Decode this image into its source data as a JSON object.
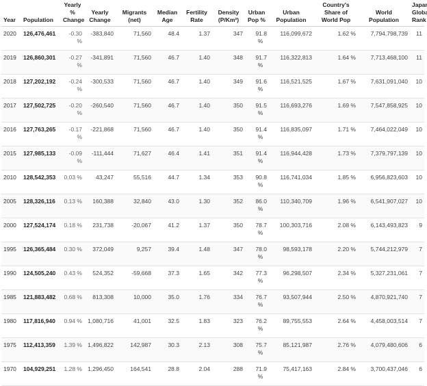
{
  "headers": {
    "year": "Year",
    "population": "Population",
    "yearly_pct_change": "Yearly % Change",
    "yearly_change": "Yearly Change",
    "migrants": "Migrants (net)",
    "median_age": "Median Age",
    "fertility": "Fertility Rate",
    "density": "Density (P/Km²)",
    "urban_pop_pct": "Urban Pop %",
    "urban_population": "Urban Population",
    "share_world": "Country's Share of World Pop",
    "world_population": "World Population",
    "global_rank": "Japan Global Rank"
  },
  "rows": [
    {
      "year": "2020",
      "population": "126,476,461",
      "yearly_pct": "-0.30 %",
      "yearly_change": "-383,840",
      "migrants": "71,560",
      "median_age": "48.4",
      "fertility": "1.37",
      "density": "347",
      "urban_pct": "91.8",
      "urban_pct_unit": "%",
      "urban_population": "116,099,672",
      "share": "1.62 %",
      "world_population": "7,794,798,739",
      "rank": "11"
    },
    {
      "year": "2019",
      "population": "126,860,301",
      "yearly_pct": "-0.27 %",
      "yearly_change": "-341,891",
      "migrants": "71,560",
      "median_age": "46.7",
      "fertility": "1.40",
      "density": "348",
      "urban_pct": "91.7",
      "urban_pct_unit": "%",
      "urban_population": "116,322,813",
      "share": "1.64 %",
      "world_population": "7,713,468,100",
      "rank": "11"
    },
    {
      "year": "2018",
      "population": "127,202,192",
      "yearly_pct": "-0.24 %",
      "yearly_change": "-300,533",
      "migrants": "71,560",
      "median_age": "46.7",
      "fertility": "1.40",
      "density": "349",
      "urban_pct": "91.6",
      "urban_pct_unit": "%",
      "urban_population": "116,521,525",
      "share": "1.67 %",
      "world_population": "7,631,091,040",
      "rank": "10"
    },
    {
      "year": "2017",
      "population": "127,502,725",
      "yearly_pct": "-0.20 %",
      "yearly_change": "-260,540",
      "migrants": "71,560",
      "median_age": "46.7",
      "fertility": "1.40",
      "density": "350",
      "urban_pct": "91.5",
      "urban_pct_unit": "%",
      "urban_population": "116,693,276",
      "share": "1.69 %",
      "world_population": "7,547,858,925",
      "rank": "10"
    },
    {
      "year": "2016",
      "population": "127,763,265",
      "yearly_pct": "-0.17 %",
      "yearly_change": "-221,868",
      "migrants": "71,560",
      "median_age": "46.7",
      "fertility": "1.40",
      "density": "350",
      "urban_pct": "91.4",
      "urban_pct_unit": "%",
      "urban_population": "116,835,097",
      "share": "1.71 %",
      "world_population": "7,464,022,049",
      "rank": "10"
    },
    {
      "year": "2015",
      "population": "127,985,133",
      "yearly_pct": "-0.09 %",
      "yearly_change": "-111,444",
      "migrants": "71,627",
      "median_age": "46.4",
      "fertility": "1.41",
      "density": "351",
      "urban_pct": "91.4",
      "urban_pct_unit": "%",
      "urban_population": "116,944,428",
      "share": "1.73 %",
      "world_population": "7,379,797,139",
      "rank": "10"
    },
    {
      "year": "2010",
      "population": "128,542,353",
      "yearly_pct": "0.03 %",
      "yearly_change": "43,247",
      "migrants": "55,516",
      "median_age": "44.7",
      "fertility": "1.34",
      "density": "353",
      "urban_pct": "90.8",
      "urban_pct_unit": "%",
      "urban_population": "116,741,034",
      "share": "1.85 %",
      "world_population": "6,956,823,603",
      "rank": "10"
    },
    {
      "year": "2005",
      "population": "128,326,116",
      "yearly_pct": "0.13 %",
      "yearly_change": "160,388",
      "migrants": "32,840",
      "median_age": "43.0",
      "fertility": "1.30",
      "density": "352",
      "urban_pct": "86.0",
      "urban_pct_unit": "%",
      "urban_population": "110,340,709",
      "share": "1.96 %",
      "world_population": "6,541,907,027",
      "rank": "10"
    },
    {
      "year": "2000",
      "population": "127,524,174",
      "yearly_pct": "0.18 %",
      "yearly_change": "231,738",
      "migrants": "-20,067",
      "median_age": "41.2",
      "fertility": "1.37",
      "density": "350",
      "urban_pct": "78.7",
      "urban_pct_unit": "%",
      "urban_population": "100,303,716",
      "share": "2.08 %",
      "world_population": "6,143,493,823",
      "rank": "9"
    },
    {
      "year": "1995",
      "population": "126,365,484",
      "yearly_pct": "0.30 %",
      "yearly_change": "372,049",
      "migrants": "9,257",
      "median_age": "39.4",
      "fertility": "1.48",
      "density": "347",
      "urban_pct": "78.0",
      "urban_pct_unit": "%",
      "urban_population": "98,593,178",
      "share": "2.20 %",
      "world_population": "5,744,212,979",
      "rank": "7"
    },
    {
      "year": "1990",
      "population": "124,505,240",
      "yearly_pct": "0.43 %",
      "yearly_change": "524,352",
      "migrants": "-59,668",
      "median_age": "37.3",
      "fertility": "1.65",
      "density": "342",
      "urban_pct": "77.3",
      "urban_pct_unit": "%",
      "urban_population": "96,298,507",
      "share": "2.34 %",
      "world_population": "5,327,231,061",
      "rank": "7"
    },
    {
      "year": "1985",
      "population": "121,883,482",
      "yearly_pct": "0.68 %",
      "yearly_change": "813,308",
      "migrants": "10,000",
      "median_age": "35.0",
      "fertility": "1.76",
      "density": "334",
      "urban_pct": "76.7",
      "urban_pct_unit": "%",
      "urban_population": "93,507,944",
      "share": "2.50 %",
      "world_population": "4,870,921,740",
      "rank": "7"
    },
    {
      "year": "1980",
      "population": "117,816,940",
      "yearly_pct": "0.94 %",
      "yearly_change": "1,080,716",
      "migrants": "41,001",
      "median_age": "32.5",
      "fertility": "1.83",
      "density": "323",
      "urban_pct": "76.2",
      "urban_pct_unit": "%",
      "urban_population": "89,755,553",
      "share": "2.64 %",
      "world_population": "4,458,003,514",
      "rank": "7"
    },
    {
      "year": "1975",
      "population": "112,413,359",
      "yearly_pct": "1.39 %",
      "yearly_change": "1,496,822",
      "migrants": "142,987",
      "median_age": "30.3",
      "fertility": "2.13",
      "density": "308",
      "urban_pct": "75.7",
      "urban_pct_unit": "%",
      "urban_population": "85,121,987",
      "share": "2.76 %",
      "world_population": "4,079,480,606",
      "rank": "6"
    },
    {
      "year": "1970",
      "population": "104,929,251",
      "yearly_pct": "1.28 %",
      "yearly_change": "1,296,450",
      "migrants": "164,541",
      "median_age": "28.8",
      "fertility": "2.04",
      "density": "288",
      "urban_pct": "71.9",
      "urban_pct_unit": "%",
      "urban_population": "75,417,163",
      "share": "2.84 %",
      "world_population": "3,700,437,046",
      "rank": "6"
    }
  ]
}
